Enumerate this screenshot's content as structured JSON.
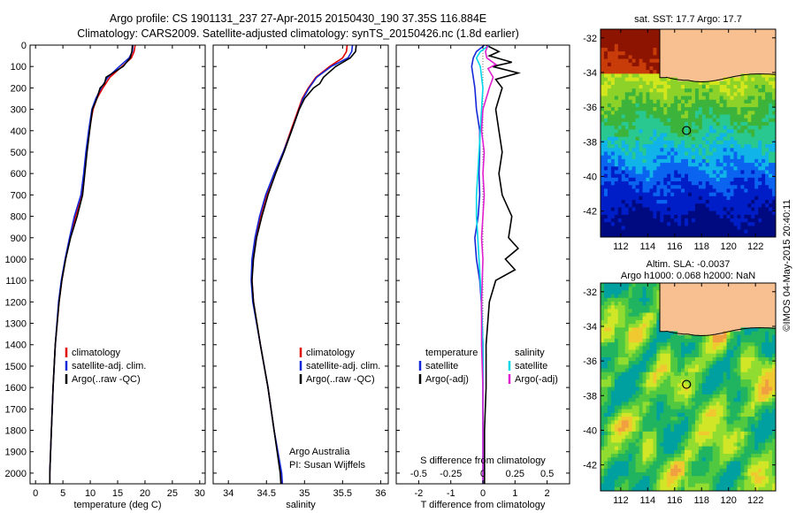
{
  "title_line1": "Argo profile: CS 1901131_237 27-Apr-2015 20150430_190 37.35S 116.884E",
  "title_line2": "Climatology: CARS2009. Satellite-adjusted climatology: synTS_20150426.nc (1.8d earlier)",
  "map_sst_title": "sat. SST: 17.7 Argo: 17.7",
  "map_sla_title1": "Altim. SLA: -0.0037",
  "map_sla_title2": "Argo h1000: 0.068 h2000: NaN",
  "credit": "©IMOS 04-May-2015 20:40:11",
  "argo_note1": "Argo Australia",
  "argo_note2": "PI: Susan Wijffels",
  "colors": {
    "climatology": "#e00000",
    "satellite": "#1428d8",
    "argo": "#000000",
    "sat_salinity": "#00d8e8",
    "argo_salinity": "#e020d0",
    "land": "#f8c090"
  },
  "chart_data": [
    {
      "type": "line",
      "panel": "temperature",
      "xlabel": "temperature (deg C)",
      "ylabel": "",
      "xlim": [
        -1,
        31
      ],
      "ylim": [
        2050,
        0
      ],
      "xticks": [
        0,
        5,
        10,
        15,
        20,
        25,
        30
      ],
      "yticks": [
        0,
        100,
        200,
        300,
        400,
        500,
        600,
        700,
        800,
        900,
        1000,
        1100,
        1200,
        1300,
        1400,
        1500,
        1600,
        1700,
        1800,
        1900,
        2000
      ],
      "legend": [
        "climatology",
        "satellite-adj. clim.",
        "Argo(..raw -QC)"
      ],
      "series": [
        {
          "name": "climatology",
          "color": "#e00000",
          "depth": [
            0,
            30,
            60,
            100,
            150,
            200,
            250,
            300,
            400,
            500,
            600,
            700,
            800,
            900,
            1000,
            1100,
            1200,
            1400,
            1600,
            1800,
            2000,
            2050
          ],
          "values": [
            18.2,
            18.0,
            17.5,
            15.8,
            13.6,
            12.3,
            11.2,
            10.5,
            9.8,
            9.3,
            8.9,
            8.4,
            7.3,
            6.3,
            5.5,
            4.8,
            4.3,
            3.6,
            3.2,
            2.9,
            2.6,
            2.6
          ]
        },
        {
          "name": "satellite-adj. clim.",
          "color": "#1428d8",
          "depth": [
            0,
            30,
            60,
            100,
            150,
            200,
            250,
            300,
            400,
            500,
            600,
            700,
            800,
            900,
            1000,
            1100,
            1200,
            1400,
            1600,
            1800,
            2000,
            2050
          ],
          "values": [
            17.8,
            17.7,
            17.1,
            15.3,
            13.2,
            12.0,
            11.0,
            10.3,
            9.7,
            9.2,
            8.8,
            8.3,
            7.1,
            6.2,
            5.4,
            4.7,
            4.2,
            3.6,
            3.2,
            2.9,
            2.6,
            2.6
          ]
        },
        {
          "name": "Argo(..raw -QC)",
          "color": "#000000",
          "depth": [
            0,
            30,
            60,
            100,
            150,
            180,
            200,
            250,
            300,
            400,
            500,
            600,
            700,
            800,
            900,
            1000,
            1100,
            1200,
            1400,
            1600,
            1800,
            2000,
            2050
          ],
          "values": [
            17.7,
            17.6,
            17.3,
            16.0,
            12.9,
            12.6,
            11.8,
            11.2,
            10.4,
            9.9,
            9.4,
            9.0,
            8.6,
            7.6,
            6.4,
            5.5,
            4.8,
            4.3,
            3.6,
            3.2,
            2.9,
            2.6,
            2.6
          ]
        }
      ]
    },
    {
      "type": "line",
      "panel": "salinity",
      "xlabel": "salinity",
      "ylabel": "",
      "xlim": [
        33.8,
        36.1
      ],
      "ylim": [
        2050,
        0
      ],
      "xticks": [
        34,
        34.5,
        35,
        35.5,
        36
      ],
      "legend": [
        "climatology",
        "satellite-adj. clim.",
        "Argo(..raw -QC)"
      ],
      "series": [
        {
          "name": "climatology",
          "color": "#e00000",
          "depth": [
            0,
            30,
            60,
            100,
            150,
            200,
            250,
            300,
            400,
            500,
            600,
            700,
            800,
            900,
            1000,
            1100,
            1200,
            1400,
            1600,
            1800,
            2000,
            2050
          ],
          "values": [
            35.56,
            35.55,
            35.5,
            35.33,
            35.15,
            35.05,
            34.97,
            34.92,
            34.82,
            34.72,
            34.6,
            34.5,
            34.42,
            34.36,
            34.32,
            34.31,
            34.33,
            34.42,
            34.52,
            34.6,
            34.69,
            34.7
          ]
        },
        {
          "name": "satellite-adj. clim.",
          "color": "#1428d8",
          "depth": [
            0,
            30,
            60,
            100,
            150,
            200,
            250,
            300,
            400,
            500,
            600,
            700,
            800,
            900,
            1000,
            1100,
            1200,
            1400,
            1600,
            1800,
            2000,
            2050
          ],
          "values": [
            35.63,
            35.62,
            35.57,
            35.35,
            35.16,
            35.06,
            34.98,
            34.93,
            34.83,
            34.72,
            34.6,
            34.49,
            34.41,
            34.35,
            34.31,
            34.3,
            34.32,
            34.42,
            34.52,
            34.6,
            34.7,
            34.71
          ]
        },
        {
          "name": "Argo(..raw -QC)",
          "color": "#000000",
          "depth": [
            0,
            30,
            60,
            100,
            150,
            180,
            200,
            250,
            300,
            400,
            500,
            600,
            700,
            800,
            900,
            1000,
            1100,
            1200,
            1400,
            1600,
            1800,
            2000,
            2050
          ],
          "values": [
            35.68,
            35.67,
            35.6,
            35.41,
            35.25,
            35.2,
            35.12,
            35.0,
            34.93,
            34.83,
            34.73,
            34.62,
            34.52,
            34.44,
            34.37,
            34.33,
            34.31,
            34.33,
            34.42,
            34.52,
            34.6,
            34.68,
            34.69
          ]
        }
      ]
    },
    {
      "type": "line",
      "panel": "difference",
      "xlabel": "T difference from climatology",
      "xlabel_top": "S difference from climatology",
      "xlim": [
        -2.7,
        2.7
      ],
      "ylim": [
        2050,
        0
      ],
      "xticks": [
        -2,
        -1,
        0,
        1,
        2
      ],
      "xticks_s": [
        -0.5,
        -0.25,
        0,
        0.25,
        0.5
      ],
      "legend_t_title": "temperature",
      "legend_s_title": "salinity",
      "legend_t": [
        "satellite",
        "Argo(-adj)"
      ],
      "legend_s": [
        "satellite",
        "Argo(-adj)"
      ],
      "series": [
        {
          "name": "temperature satellite",
          "color": "#1428d8",
          "depth": [
            0,
            30,
            60,
            100,
            150,
            200,
            300,
            400,
            500,
            600,
            700,
            800,
            900,
            1000,
            1100,
            1200,
            1400,
            1600,
            1800,
            2050
          ],
          "values": [
            0.05,
            -0.2,
            -0.3,
            -0.35,
            -0.3,
            -0.25,
            -0.2,
            -0.1,
            -0.1,
            -0.12,
            -0.1,
            -0.15,
            -0.25,
            -0.2,
            -0.1,
            -0.05,
            0,
            0,
            0,
            0
          ]
        },
        {
          "name": "temperature Argo(-adj)",
          "color": "#000000",
          "depth": [
            0,
            30,
            50,
            80,
            100,
            130,
            160,
            200,
            250,
            300,
            400,
            500,
            600,
            700,
            800,
            900,
            950,
            1000,
            1050,
            1100,
            1200,
            1400,
            1600,
            1800,
            2050
          ],
          "values": [
            0.1,
            0.5,
            0.2,
            0.9,
            0.3,
            1.1,
            0.4,
            0.6,
            0.5,
            0.4,
            0.5,
            0.6,
            0.5,
            0.6,
            0.9,
            0.8,
            1.1,
            0.7,
            1.0,
            0.4,
            0.2,
            0.1,
            0.1,
            0.05,
            0.05
          ]
        },
        {
          "name": "salinity satellite",
          "color": "#00d8e8",
          "depth": [
            0,
            30,
            60,
            100,
            150,
            200,
            300,
            400,
            500,
            600,
            700,
            800,
            900,
            1000,
            1200,
            1400,
            1600,
            1800,
            2050
          ],
          "values": [
            0.05,
            -0.02,
            -0.05,
            -0.02,
            -0.01,
            0.0,
            -0.01,
            -0.02,
            -0.03,
            -0.04,
            -0.05,
            -0.05,
            -0.04,
            -0.03,
            -0.01,
            0.0,
            0.0,
            0.0,
            0.0
          ]
        },
        {
          "name": "salinity Argo(-adj)",
          "color": "#e020d0",
          "depth": [
            0,
            30,
            60,
            90,
            110,
            150,
            200,
            300,
            400,
            500,
            600,
            700,
            800,
            900,
            1000,
            1200,
            1400,
            1600,
            1800,
            2050
          ],
          "values": [
            0.04,
            0.02,
            0.03,
            0.1,
            0.04,
            0.08,
            0.05,
            0.0,
            -0.01,
            0.01,
            0.0,
            0.01,
            0.0,
            -0.01,
            0.0,
            -0.01,
            -0.01,
            0.0,
            0.0,
            0.0
          ]
        }
      ]
    },
    {
      "type": "heatmap",
      "panel": "sst_map",
      "xlim": [
        110.5,
        123.5
      ],
      "ylim": [
        -43.5,
        -31.5
      ],
      "xticks": [
        112,
        114,
        116,
        118,
        120,
        122
      ],
      "yticks": [
        -32,
        -34,
        -36,
        -38,
        -40,
        -42
      ],
      "profile_location": [
        116.884,
        -37.35
      ]
    },
    {
      "type": "heatmap",
      "panel": "sla_map",
      "xlim": [
        110.5,
        123.5
      ],
      "ylim": [
        -43.5,
        -31.5
      ],
      "xticks": [
        112,
        114,
        116,
        118,
        120,
        122
      ],
      "yticks": [
        -32,
        -34,
        -36,
        -38,
        -40,
        -42
      ],
      "profile_location": [
        116.884,
        -37.35
      ]
    }
  ]
}
